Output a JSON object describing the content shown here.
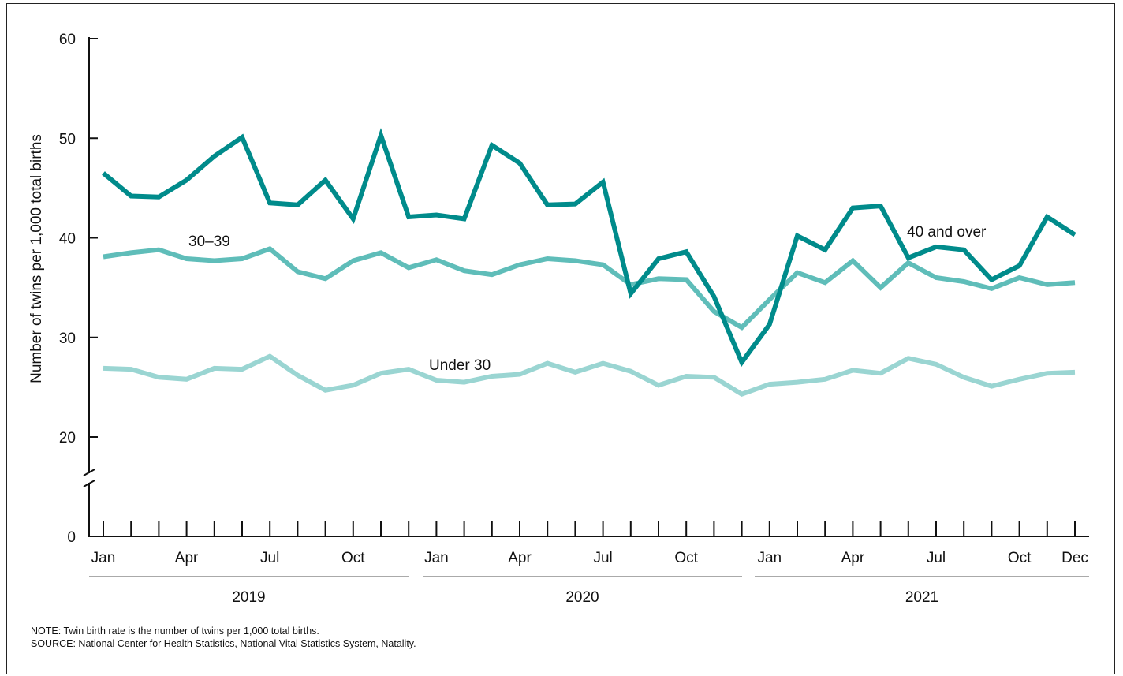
{
  "chart_data": {
    "type": "line",
    "title": "",
    "ylabel": "Number of twins per 1,000 total births",
    "xlabel": "",
    "ylim": [
      0,
      60
    ],
    "axis_break": "between 0 and 20",
    "y_ticks": [
      "0",
      "20",
      "30",
      "40",
      "50",
      "60"
    ],
    "month_tick_labels": [
      "Jan",
      "Apr",
      "Jul",
      "Oct",
      "Jan",
      "Apr",
      "Jul",
      "Oct",
      "Jan",
      "Apr",
      "Jul",
      "Oct",
      "Dec"
    ],
    "years": [
      "2019",
      "2020",
      "2021"
    ],
    "x": [
      "2019-01",
      "2019-02",
      "2019-03",
      "2019-04",
      "2019-05",
      "2019-06",
      "2019-07",
      "2019-08",
      "2019-09",
      "2019-10",
      "2019-11",
      "2019-12",
      "2020-01",
      "2020-02",
      "2020-03",
      "2020-04",
      "2020-05",
      "2020-06",
      "2020-07",
      "2020-08",
      "2020-09",
      "2020-10",
      "2020-11",
      "2020-12",
      "2021-01",
      "2021-02",
      "2021-03",
      "2021-04",
      "2021-05",
      "2021-06",
      "2021-07",
      "2021-08",
      "2021-09",
      "2021-10",
      "2021-11",
      "2021-12"
    ],
    "grid": false,
    "legend": "none",
    "series": [
      {
        "name": "40 and over",
        "color": "#008b8b",
        "values": [
          46.5,
          44.2,
          44.1,
          45.8,
          48.2,
          50.1,
          43.5,
          43.3,
          45.8,
          41.9,
          50.3,
          42.1,
          42.3,
          41.9,
          49.3,
          47.5,
          43.3,
          43.4,
          45.6,
          34.4,
          37.9,
          38.6,
          34.1,
          27.5,
          31.3,
          40.2,
          38.8,
          43.0,
          43.2,
          38.0,
          39.1,
          38.8,
          35.8,
          37.2,
          42.1,
          40.3
        ]
      },
      {
        "name": "30–39",
        "color": "#5fbdb9",
        "values": [
          38.1,
          38.5,
          38.8,
          37.9,
          37.7,
          37.9,
          38.9,
          36.6,
          35.9,
          37.7,
          38.5,
          37.0,
          37.8,
          36.7,
          36.3,
          37.3,
          37.9,
          37.7,
          37.3,
          35.3,
          35.9,
          35.8,
          32.6,
          31.0,
          33.8,
          36.5,
          35.5,
          37.7,
          35.0,
          37.5,
          36.0,
          35.6,
          34.9,
          36.0,
          35.3,
          35.5
        ]
      },
      {
        "name": "Under 30",
        "color": "#9ad5d2",
        "values": [
          26.9,
          26.8,
          26.0,
          25.8,
          26.9,
          26.8,
          28.1,
          26.2,
          24.7,
          25.2,
          26.4,
          26.8,
          25.7,
          25.5,
          26.1,
          26.3,
          27.4,
          26.5,
          27.4,
          26.6,
          25.2,
          26.1,
          26.0,
          24.3,
          25.3,
          25.5,
          25.8,
          26.7,
          26.4,
          27.9,
          27.3,
          26.0,
          25.1,
          25.8,
          26.4,
          26.5
        ]
      }
    ],
    "annotations": [
      {
        "text": "40 and over",
        "series": "40 and over"
      },
      {
        "text": "30–39",
        "series": "30–39"
      },
      {
        "text": "Under 30",
        "series": "Under 30"
      }
    ]
  },
  "notes": {
    "note": "NOTE: Twin birth rate is the number of twins per 1,000 total births.",
    "source": "SOURCE: National Center for Health Statistics, National Vital Statistics System, Natality."
  }
}
